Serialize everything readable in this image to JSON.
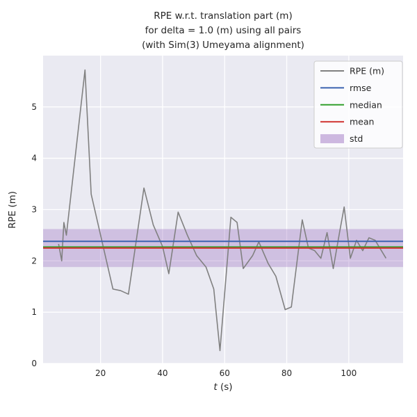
{
  "title_lines": [
    "RPE w.r.t. translation part (m)",
    "for delta = 1.0 (m) using all pairs",
    "(with Sim(3) Umeyama alignment)"
  ],
  "axes": {
    "ylabel": "RPE (m)",
    "xlabel_italic": "t",
    "xlabel_rest": " (s)"
  },
  "chart_data": {
    "type": "line",
    "title": "RPE w.r.t. translation part (m) for delta = 1.0 (m) using all pairs (with Sim(3) Umeyama alignment)",
    "xlabel": "t (s)",
    "ylabel": "RPE (m)",
    "xlim": [
      1.5,
      117.5
    ],
    "ylim": [
      0,
      6.0
    ],
    "xticks": [
      20,
      40,
      60,
      80,
      100
    ],
    "yticks": [
      0,
      1,
      2,
      3,
      4,
      5
    ],
    "background": "#eaeaf2",
    "grid_color": "#ffffff",
    "grid": true,
    "legend_position": "upper right",
    "series": [
      {
        "name": "RPE (m)",
        "color": "#808080",
        "x": [
          6.5,
          7.5,
          8.2,
          9,
          15,
          17,
          24,
          26.5,
          29,
          34,
          37,
          40,
          42,
          45,
          48,
          51,
          54,
          56.5,
          58.5,
          62,
          64,
          66,
          69,
          71,
          74,
          76.5,
          79.5,
          81.5,
          85,
          87,
          89,
          91,
          93,
          95,
          97,
          98.5,
          100.5,
          102.5,
          104.5,
          106.5,
          108.5,
          112
        ],
        "y": [
          2.33,
          2.0,
          2.75,
          2.5,
          5.72,
          3.3,
          1.45,
          1.42,
          1.35,
          3.42,
          2.7,
          2.28,
          1.75,
          2.95,
          2.5,
          2.1,
          1.88,
          1.45,
          0.25,
          2.85,
          2.75,
          1.85,
          2.1,
          2.37,
          1.95,
          1.7,
          1.05,
          1.1,
          2.8,
          2.25,
          2.2,
          2.05,
          2.55,
          1.85,
          2.55,
          3.05,
          2.05,
          2.4,
          2.2,
          2.45,
          2.4,
          2.05
        ]
      }
    ],
    "stats": {
      "rmse": 2.38,
      "median": 2.27,
      "mean": 2.25,
      "std": 0.37
    },
    "stat_colors": {
      "rmse": "#3b62b0",
      "median": "#33a02c",
      "mean": "#d03330",
      "std": "#9467bd"
    },
    "legend": [
      {
        "label": "RPE (m)",
        "type": "line",
        "color": "#808080"
      },
      {
        "label": "rmse",
        "type": "line",
        "color": "#3b62b0"
      },
      {
        "label": "median",
        "type": "line",
        "color": "#33a02c"
      },
      {
        "label": "mean",
        "type": "line",
        "color": "#d03330"
      },
      {
        "label": "std",
        "type": "patch",
        "color": "#9467bd"
      }
    ]
  }
}
